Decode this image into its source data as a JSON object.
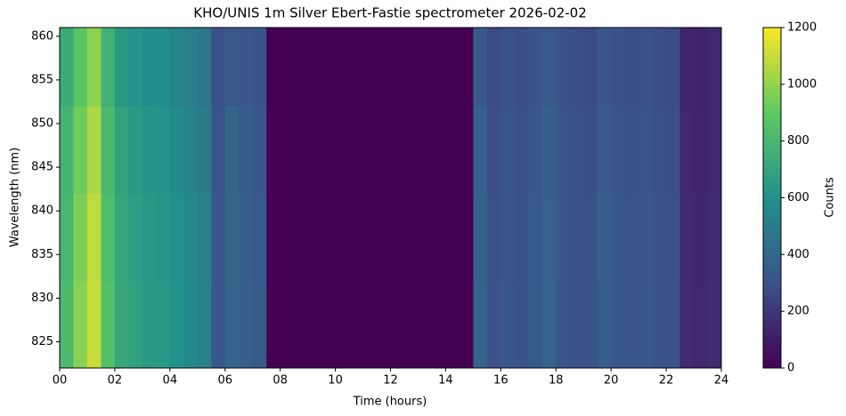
{
  "chart_data": {
    "type": "heatmap",
    "title": "KHO/UNIS 1m Silver Ebert-Fastie spectrometer 2026-02-02",
    "x_label": "Time (hours)",
    "y_label": "Wavelength (nm)",
    "colorbar_label": "Counts",
    "colormap": "viridis",
    "xbins": [
      0,
      0.5,
      1,
      1.5,
      2,
      2.5,
      3,
      3.5,
      4,
      4.5,
      5,
      5.5,
      6,
      6.5,
      7,
      7.5,
      8,
      8.5,
      9,
      9.5,
      10,
      10.5,
      11,
      11.5,
      12,
      12.5,
      13,
      13.5,
      14,
      14.5,
      15,
      15.5,
      16,
      16.5,
      17,
      17.5,
      18,
      18.5,
      19,
      19.5,
      20,
      20.5,
      21,
      21.5,
      22,
      22.5,
      23,
      23.5,
      24
    ],
    "ybins": [
      822,
      832,
      842,
      852,
      861
    ],
    "values": [
      [
        820,
        980,
        1100,
        850,
        720,
        680,
        650,
        640,
        600,
        560,
        520,
        330,
        380,
        360,
        340,
        0,
        0,
        0,
        0,
        0,
        0,
        0,
        0,
        0,
        0,
        0,
        0,
        0,
        0,
        0,
        380,
        300,
        330,
        310,
        340,
        380,
        330,
        310,
        300,
        360,
        330,
        320,
        330,
        310,
        300,
        150,
        140,
        160
      ],
      [
        800,
        960,
        1080,
        830,
        705,
        665,
        640,
        625,
        590,
        550,
        510,
        325,
        390,
        355,
        335,
        0,
        0,
        0,
        0,
        0,
        0,
        0,
        0,
        0,
        0,
        0,
        0,
        0,
        0,
        0,
        375,
        295,
        325,
        305,
        335,
        370,
        325,
        305,
        295,
        355,
        325,
        315,
        325,
        305,
        295,
        148,
        138,
        158
      ],
      [
        780,
        930,
        1045,
        810,
        685,
        645,
        620,
        610,
        570,
        530,
        495,
        315,
        400,
        345,
        325,
        0,
        0,
        0,
        0,
        0,
        0,
        0,
        0,
        0,
        0,
        0,
        0,
        0,
        0,
        0,
        365,
        285,
        315,
        295,
        325,
        360,
        315,
        295,
        285,
        340,
        315,
        305,
        315,
        295,
        285,
        142,
        133,
        152
      ],
      [
        740,
        880,
        990,
        765,
        650,
        610,
        585,
        575,
        540,
        505,
        470,
        300,
        340,
        325,
        305,
        0,
        0,
        0,
        0,
        0,
        0,
        0,
        0,
        0,
        0,
        0,
        0,
        0,
        0,
        0,
        340,
        270,
        300,
        280,
        305,
        340,
        300,
        280,
        270,
        325,
        300,
        290,
        300,
        280,
        270,
        135,
        126,
        145
      ]
    ],
    "xlim": [
      0,
      24
    ],
    "ylim": [
      822,
      861
    ],
    "clim": [
      0,
      1200
    ],
    "xticks": [
      {
        "value": 0,
        "label": "00"
      },
      {
        "value": 2,
        "label": "02"
      },
      {
        "value": 4,
        "label": "04"
      },
      {
        "value": 6,
        "label": "06"
      },
      {
        "value": 8,
        "label": "08"
      },
      10,
      12,
      14,
      16,
      18,
      20,
      22,
      24
    ],
    "yticks": [
      825,
      830,
      835,
      840,
      845,
      850,
      855,
      860
    ],
    "cticks": [
      0,
      200,
      400,
      600,
      800,
      1000,
      1200
    ]
  }
}
